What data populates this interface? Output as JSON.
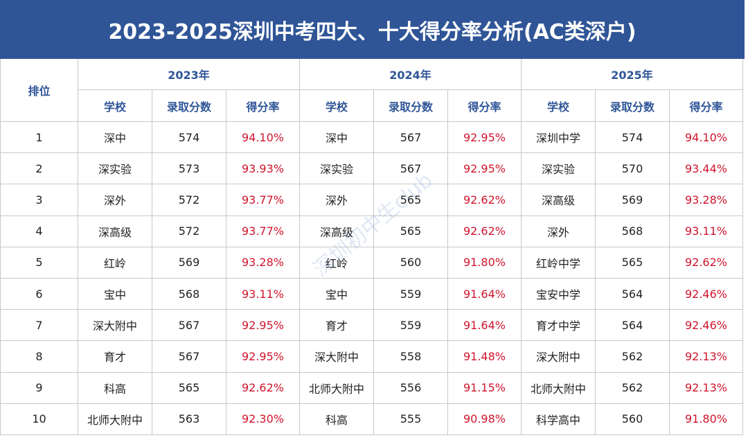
{
  "header": {
    "title": "2023-2025深圳中考四大、十大得分率分析(AC类深户)"
  },
  "watermark": "深圳初中生club",
  "table": {
    "rank_header": "排位",
    "years": [
      "2023年",
      "2024年",
      "2025年"
    ],
    "subheaders": [
      "学校",
      "录取分数",
      "得分率"
    ],
    "rows": [
      [
        1,
        "深中",
        574,
        "94.10%",
        "深中",
        567,
        "92.95%",
        "深圳中学",
        574,
        "94.10%"
      ],
      [
        2,
        "深实验",
        573,
        "93.93%",
        "深实验",
        567,
        "92.95%",
        "深实验",
        570,
        "93.44%"
      ],
      [
        3,
        "深外",
        572,
        "93.77%",
        "深外",
        565,
        "92.62%",
        "深高级",
        569,
        "93.28%"
      ],
      [
        4,
        "深高级",
        572,
        "93.77%",
        "深高级",
        565,
        "92.62%",
        "深外",
        568,
        "93.11%"
      ],
      [
        5,
        "红岭",
        569,
        "93.28%",
        "红岭",
        560,
        "91.80%",
        "红岭中学",
        565,
        "92.62%"
      ],
      [
        6,
        "宝中",
        568,
        "93.11%",
        "宝中",
        559,
        "91.64%",
        "宝安中学",
        564,
        "92.46%"
      ],
      [
        7,
        "深大附中",
        567,
        "92.95%",
        "育才",
        559,
        "91.64%",
        "育才中学",
        564,
        "92.46%"
      ],
      [
        8,
        "育才",
        567,
        "92.95%",
        "深大附中",
        558,
        "91.48%",
        "深大附中",
        562,
        "92.13%"
      ],
      [
        9,
        "科高",
        565,
        "92.62%",
        "北师大附中",
        556,
        "91.15%",
        "北师大附中",
        562,
        "92.13%"
      ],
      [
        10,
        "北师大附中",
        563,
        "92.30%",
        "科高",
        555,
        "90.98%",
        "科学高中",
        560,
        "91.80%"
      ]
    ]
  }
}
